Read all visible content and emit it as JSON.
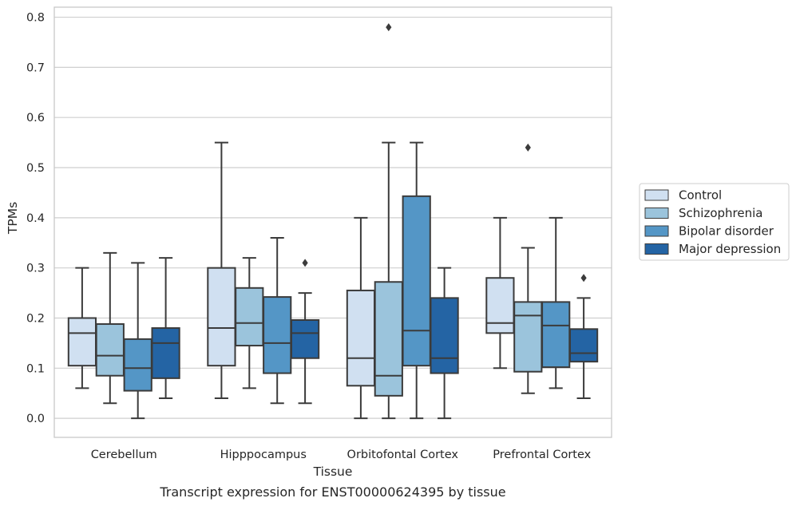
{
  "caption": "Transcript expression for ENST00000624395 by tissue",
  "chart_data": {
    "type": "boxplot",
    "title": "",
    "xlabel": "Tissue",
    "ylabel": "TPMs",
    "ylim": [
      -0.038,
      0.82
    ],
    "yticks": [
      0.0,
      0.1,
      0.2,
      0.3,
      0.4,
      0.5,
      0.6,
      0.7,
      0.8
    ],
    "ytick_labels": [
      "0.0",
      "0.1",
      "0.2",
      "0.3",
      "0.4",
      "0.5",
      "0.6",
      "0.7",
      "0.8"
    ],
    "grid": "horizontal",
    "legend_position": "right",
    "categories": [
      "Cerebellum",
      "Hipppocampus",
      "Orbitofontal Cortex",
      "Prefrontal Cortex"
    ],
    "series": [
      {
        "name": "Control",
        "color": "#d0e0f1",
        "boxes": [
          {
            "whislo": 0.06,
            "q1": 0.105,
            "med": 0.17,
            "q3": 0.2,
            "whishi": 0.3,
            "fliers": []
          },
          {
            "whislo": 0.04,
            "q1": 0.105,
            "med": 0.18,
            "q3": 0.3,
            "whishi": 0.55,
            "fliers": []
          },
          {
            "whislo": 0.0,
            "q1": 0.065,
            "med": 0.12,
            "q3": 0.255,
            "whishi": 0.4,
            "fliers": []
          },
          {
            "whislo": 0.1,
            "q1": 0.17,
            "med": 0.19,
            "q3": 0.28,
            "whishi": 0.4,
            "fliers": []
          }
        ]
      },
      {
        "name": "Schizophrenia",
        "color": "#9bc4dc",
        "boxes": [
          {
            "whislo": 0.03,
            "q1": 0.085,
            "med": 0.125,
            "q3": 0.188,
            "whishi": 0.33,
            "fliers": []
          },
          {
            "whislo": 0.06,
            "q1": 0.145,
            "med": 0.19,
            "q3": 0.26,
            "whishi": 0.32,
            "fliers": []
          },
          {
            "whislo": 0.0,
            "q1": 0.045,
            "med": 0.085,
            "q3": 0.272,
            "whishi": 0.55,
            "fliers": [
              0.78
            ]
          },
          {
            "whislo": 0.05,
            "q1": 0.093,
            "med": 0.205,
            "q3": 0.232,
            "whishi": 0.34,
            "fliers": [
              0.54
            ]
          }
        ]
      },
      {
        "name": "Bipolar disorder",
        "color": "#5496c6",
        "boxes": [
          {
            "whislo": 0.0,
            "q1": 0.055,
            "med": 0.1,
            "q3": 0.158,
            "whishi": 0.31,
            "fliers": []
          },
          {
            "whislo": 0.03,
            "q1": 0.09,
            "med": 0.15,
            "q3": 0.242,
            "whishi": 0.36,
            "fliers": []
          },
          {
            "whislo": 0.0,
            "q1": 0.105,
            "med": 0.175,
            "q3": 0.443,
            "whishi": 0.55,
            "fliers": []
          },
          {
            "whislo": 0.06,
            "q1": 0.102,
            "med": 0.185,
            "q3": 0.232,
            "whishi": 0.4,
            "fliers": []
          }
        ]
      },
      {
        "name": "Major depression",
        "color": "#2464a4",
        "boxes": [
          {
            "whislo": 0.04,
            "q1": 0.08,
            "med": 0.15,
            "q3": 0.18,
            "whishi": 0.32,
            "fliers": []
          },
          {
            "whislo": 0.03,
            "q1": 0.12,
            "med": 0.17,
            "q3": 0.196,
            "whishi": 0.25,
            "fliers": [
              0.31
            ]
          },
          {
            "whislo": 0.0,
            "q1": 0.09,
            "med": 0.12,
            "q3": 0.24,
            "whishi": 0.3,
            "fliers": []
          },
          {
            "whislo": 0.04,
            "q1": 0.113,
            "med": 0.13,
            "q3": 0.178,
            "whishi": 0.24,
            "fliers": [
              0.28
            ]
          }
        ]
      }
    ]
  }
}
